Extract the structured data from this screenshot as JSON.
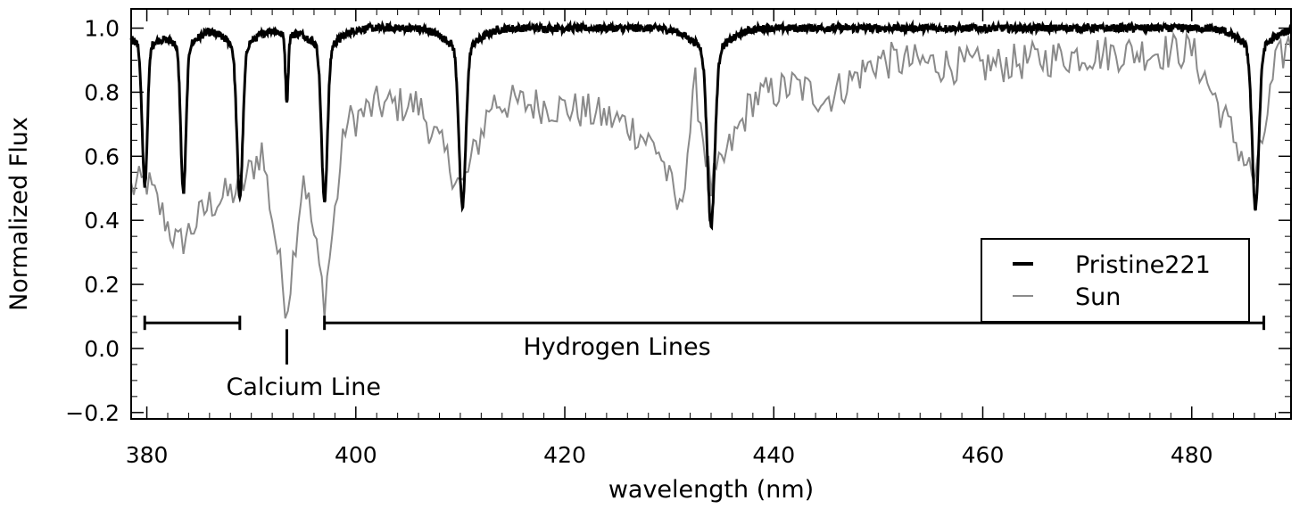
{
  "chart_data": {
    "type": "line",
    "title": "",
    "xlabel": "wavelength (nm)",
    "ylabel": "Normalized Flux",
    "xlim": [
      378.5,
      489.5
    ],
    "ylim": [
      -0.22,
      1.06
    ],
    "x_ticks": [
      380,
      400,
      420,
      440,
      460,
      480
    ],
    "x_tick_labels": [
      "380",
      "400",
      "420",
      "440",
      "460",
      "480"
    ],
    "y_ticks": [
      -0.2,
      0.0,
      0.2,
      0.4,
      0.6,
      0.8,
      1.0
    ],
    "y_tick_labels": [
      "−0.2",
      "0.0",
      "0.2",
      "0.4",
      "0.6",
      "0.8",
      "1.0"
    ],
    "grid": false,
    "legend_position": "lower-right",
    "series": [
      {
        "name": "Pristine221",
        "color": "#000000",
        "style": "thick-line",
        "continuum": 1.0,
        "noise": 0.012,
        "absorption_lines": [
          {
            "center": 379.8,
            "depth": 0.44,
            "width": 0.35
          },
          {
            "center": 383.5,
            "depth": 0.46,
            "width": 0.35
          },
          {
            "center": 388.9,
            "depth": 0.47,
            "width": 0.4
          },
          {
            "center": 393.4,
            "depth": 0.2,
            "width": 0.18
          },
          {
            "center": 397.0,
            "depth": 0.48,
            "width": 0.4
          },
          {
            "center": 410.2,
            "depth": 0.5,
            "width": 0.45
          },
          {
            "center": 434.0,
            "depth": 0.55,
            "width": 0.5
          },
          {
            "center": 486.1,
            "depth": 0.5,
            "width": 0.45
          }
        ]
      },
      {
        "name": "Sun",
        "color": "#8a8a8a",
        "style": "thin-line",
        "envelope": [
          [
            378.5,
            0.5
          ],
          [
            380,
            0.52
          ],
          [
            383,
            0.32
          ],
          [
            386,
            0.45
          ],
          [
            389,
            0.5
          ],
          [
            391,
            0.62
          ],
          [
            393.4,
            0.12
          ],
          [
            395,
            0.55
          ],
          [
            397,
            0.15
          ],
          [
            399,
            0.7
          ],
          [
            402,
            0.76
          ],
          [
            406,
            0.76
          ],
          [
            410.2,
            0.5
          ],
          [
            413,
            0.77
          ],
          [
            418,
            0.76
          ],
          [
            422,
            0.74
          ],
          [
            426,
            0.7
          ],
          [
            429,
            0.62
          ],
          [
            431,
            0.42
          ],
          [
            432.5,
            0.82
          ],
          [
            434,
            0.5
          ],
          [
            438,
            0.78
          ],
          [
            442,
            0.82
          ],
          [
            445,
            0.78
          ],
          [
            450,
            0.9
          ],
          [
            460,
            0.88
          ],
          [
            470,
            0.92
          ],
          [
            480,
            0.93
          ],
          [
            486.1,
            0.52
          ],
          [
            488,
            0.88
          ],
          [
            489.5,
            0.96
          ]
        ],
        "sample_step_nm": 0.25,
        "jitter": 0.06
      }
    ],
    "annotations": [
      {
        "label": "Calcium Line",
        "type": "tick",
        "x": 393.4,
        "y_top": 0.06,
        "y_bottom": -0.05,
        "label_x": 395.0,
        "label_y": -0.145
      },
      {
        "label": "",
        "type": "range",
        "x_start": 379.8,
        "x_end": 388.9,
        "y": 0.08
      },
      {
        "label": "Hydrogen Lines",
        "type": "range",
        "x_start": 397.0,
        "x_end": 486.9,
        "y": 0.08,
        "label_x": 425.0,
        "label_y": -0.02
      }
    ]
  }
}
